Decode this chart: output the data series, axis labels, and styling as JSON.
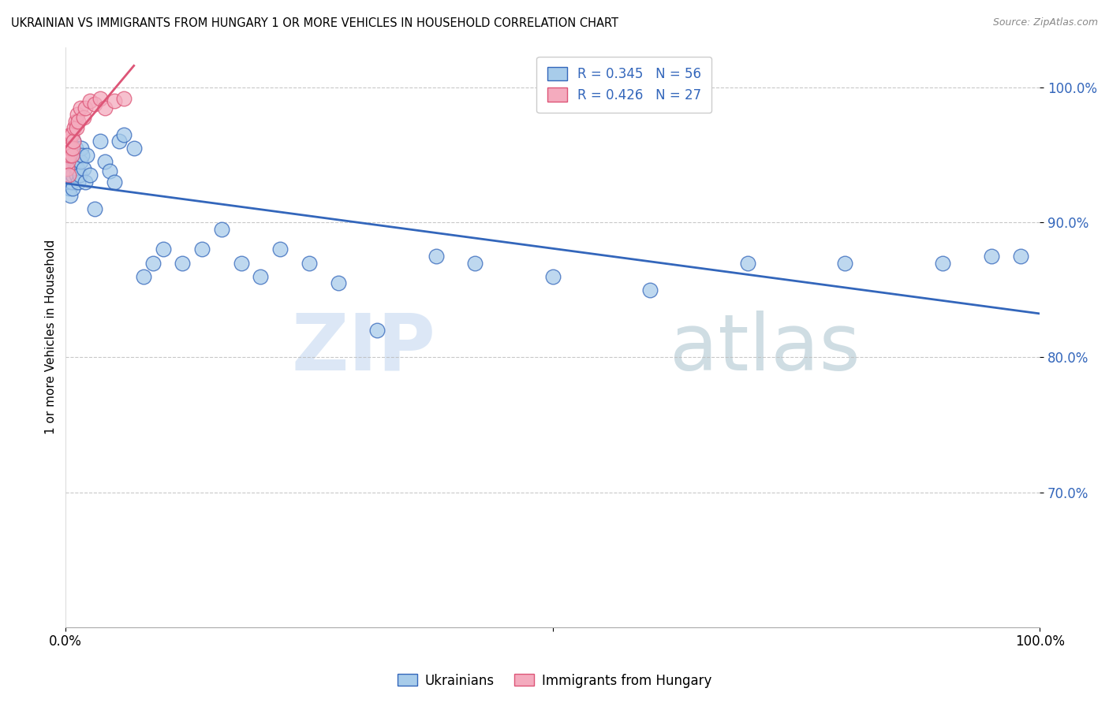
{
  "title": "UKRAINIAN VS IMMIGRANTS FROM HUNGARY 1 OR MORE VEHICLES IN HOUSEHOLD CORRELATION CHART",
  "source": "Source: ZipAtlas.com",
  "ylabel": "1 or more Vehicles in Household",
  "xlim": [
    0.0,
    1.0
  ],
  "ylim": [
    0.6,
    1.03
  ],
  "yticks": [
    0.7,
    0.8,
    0.9,
    1.0
  ],
  "ytick_labels": [
    "70.0%",
    "80.0%",
    "90.0%",
    "100.0%"
  ],
  "xtick_vals": [
    0.0,
    0.5,
    1.0
  ],
  "xtick_labels": [
    "0.0%",
    "",
    "100.0%"
  ],
  "legend_entries": [
    "Ukrainians",
    "Immigrants from Hungary"
  ],
  "R_blue": 0.345,
  "N_blue": 56,
  "R_pink": 0.426,
  "N_pink": 27,
  "blue_color": "#A8CCEA",
  "pink_color": "#F4ABBE",
  "line_blue": "#3366BB",
  "line_pink": "#DD5577",
  "watermark_zip": "ZIP",
  "watermark_atlas": "atlas",
  "blue_x": [
    0.001,
    0.001,
    0.002,
    0.003,
    0.003,
    0.004,
    0.004,
    0.005,
    0.005,
    0.006,
    0.007,
    0.007,
    0.008,
    0.009,
    0.01,
    0.01,
    0.011,
    0.012,
    0.013,
    0.014,
    0.015,
    0.016,
    0.017,
    0.018,
    0.02,
    0.022,
    0.025,
    0.03,
    0.035,
    0.04,
    0.045,
    0.05,
    0.055,
    0.06,
    0.07,
    0.08,
    0.09,
    0.1,
    0.12,
    0.14,
    0.16,
    0.18,
    0.2,
    0.22,
    0.25,
    0.28,
    0.32,
    0.38,
    0.42,
    0.5,
    0.6,
    0.7,
    0.8,
    0.9,
    0.95,
    0.98
  ],
  "blue_y": [
    0.935,
    0.945,
    0.93,
    0.94,
    0.955,
    0.925,
    0.935,
    0.94,
    0.92,
    0.93,
    0.925,
    0.935,
    0.96,
    0.945,
    0.94,
    0.955,
    0.935,
    0.94,
    0.93,
    0.935,
    0.945,
    0.955,
    0.95,
    0.94,
    0.93,
    0.95,
    0.935,
    0.91,
    0.96,
    0.945,
    0.938,
    0.93,
    0.96,
    0.965,
    0.955,
    0.86,
    0.87,
    0.88,
    0.87,
    0.88,
    0.895,
    0.87,
    0.86,
    0.88,
    0.87,
    0.855,
    0.82,
    0.875,
    0.87,
    0.86,
    0.85,
    0.87,
    0.87,
    0.87,
    0.875,
    0.875
  ],
  "pink_x": [
    0.001,
    0.001,
    0.002,
    0.002,
    0.003,
    0.004,
    0.004,
    0.005,
    0.005,
    0.006,
    0.006,
    0.007,
    0.008,
    0.009,
    0.01,
    0.011,
    0.012,
    0.013,
    0.015,
    0.018,
    0.02,
    0.025,
    0.03,
    0.035,
    0.04,
    0.05,
    0.06
  ],
  "pink_y": [
    0.94,
    0.955,
    0.945,
    0.96,
    0.935,
    0.95,
    0.96,
    0.955,
    0.965,
    0.95,
    0.965,
    0.955,
    0.96,
    0.97,
    0.975,
    0.97,
    0.98,
    0.975,
    0.985,
    0.978,
    0.985,
    0.99,
    0.988,
    0.992,
    0.985,
    0.99,
    0.992
  ]
}
